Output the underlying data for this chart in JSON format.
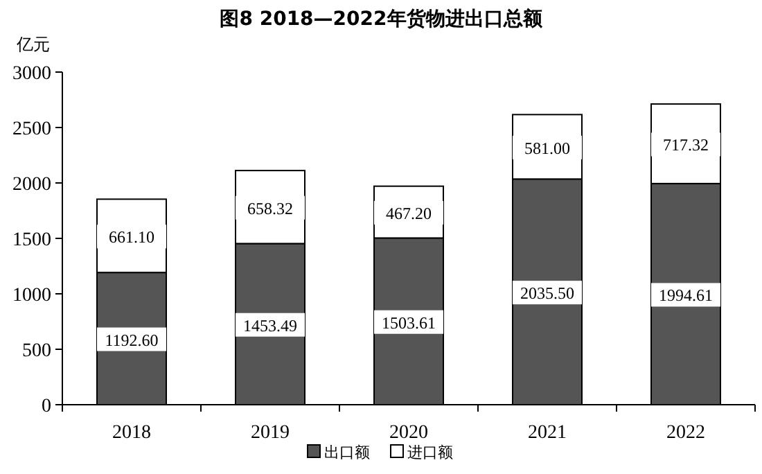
{
  "chart_data": {
    "type": "bar",
    "title": "图8 2018—2022年货物进出口总额",
    "ylabel": "亿元",
    "categories": [
      "2018",
      "2019",
      "2020",
      "2021",
      "2022"
    ],
    "stacked": true,
    "series": [
      {
        "name": "出口额",
        "color": "#555555",
        "values": [
          1192.6,
          1453.49,
          1503.61,
          2035.5,
          1994.61
        ],
        "value_labels": [
          "1192.60",
          "1453.49",
          "1503.61",
          "2035.50",
          "1994.61"
        ]
      },
      {
        "name": "进口额",
        "color": "#ffffff",
        "values": [
          661.1,
          658.32,
          467.2,
          581.0,
          717.32
        ],
        "value_labels": [
          "661.10",
          "658.32",
          "467.20",
          "581.00",
          "717.32"
        ]
      }
    ],
    "ylim": [
      0,
      3000
    ],
    "yticks": [
      0,
      500,
      1000,
      1500,
      2000,
      2500,
      3000
    ],
    "legend": "bottom",
    "grid": false
  }
}
